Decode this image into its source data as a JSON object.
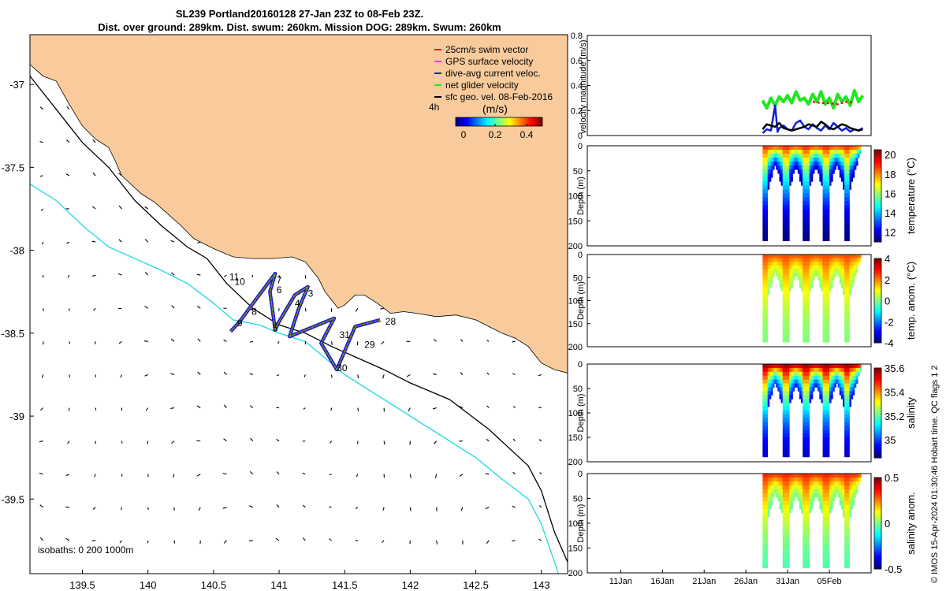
{
  "title_line1": "SL239 Portland20160128 27-Jan 23Z to 08-Feb 23Z.",
  "title_line2": "Dist. over ground: 289km. Dist. swum: 260km. Mission DOG: 289km. Swum: 260km",
  "copyright": "© IMOS 15-Apr-2024 01:30:46 Hobart time. QC flags 1  2",
  "colors": {
    "land": "#f9cb9c",
    "isobath200": "#000000",
    "isobath1000": "#2bd9e8",
    "track": "#e8181c",
    "dive_avg": "#1020d0",
    "net": "#22e622",
    "geo": "#000000"
  },
  "chart_data": [
    {
      "type": "scatter",
      "name": "map",
      "xlim": [
        139.1,
        143.2
      ],
      "ylim": [
        -39.95,
        -36.7
      ],
      "x_ticks": [
        "139.5",
        "140",
        "140.5",
        "141",
        "141.5",
        "142",
        "142.5",
        "143"
      ],
      "x_tick_values": [
        139.5,
        140,
        140.5,
        141,
        141.5,
        142,
        142.5,
        143
      ],
      "y_ticks": [
        "-37",
        "-37.5",
        "-38",
        "-38.5",
        "-39",
        "-39.5"
      ],
      "y_tick_values": [
        -37,
        -37.5,
        -38,
        -38.5,
        -39,
        -39.5
      ],
      "legend": {
        "position": "top-right",
        "items": [
          {
            "label": "25cm/s swim vector",
            "color": "#e8181c"
          },
          {
            "label": "GPS surface velocity",
            "color": "#e040e0"
          },
          {
            "label": "dive-avg current veloc.",
            "color": "#1020d0"
          },
          {
            "label": "net glider velocity",
            "color": "#22e622"
          },
          {
            "label": "sfc geo. vel. 08-Feb-2016",
            "color": "#000000"
          }
        ]
      },
      "colorbar": {
        "label_left": "4h",
        "label": "(m/s)",
        "ticks": [
          "0",
          "0.2",
          "0.4"
        ],
        "tick_values": [
          0,
          0.2,
          0.4
        ],
        "range": [
          -0.05,
          0.5
        ]
      },
      "isobath_text": "isobaths: 0   200  1000m",
      "day_labels": [
        {
          "text": "11",
          "lon": 140.62,
          "lat": -38.16
        },
        {
          "text": "10",
          "lon": 140.66,
          "lat": -38.19
        },
        {
          "text": "7",
          "lon": 140.98,
          "lat": -38.18
        },
        {
          "text": "6",
          "lon": 140.98,
          "lat": -38.24
        },
        {
          "text": "3",
          "lon": 141.22,
          "lat": -38.26
        },
        {
          "text": "4",
          "lon": 141.12,
          "lat": -38.32
        },
        {
          "text": "8",
          "lon": 140.79,
          "lat": -38.37
        },
        {
          "text": "9",
          "lon": 140.68,
          "lat": -38.44
        },
        {
          "text": "5",
          "lon": 140.95,
          "lat": -38.47
        },
        {
          "text": "28",
          "lon": 141.81,
          "lat": -38.43
        },
        {
          "text": "31",
          "lon": 141.46,
          "lat": -38.51
        },
        {
          "text": "29",
          "lon": 141.65,
          "lat": -38.57
        },
        {
          "text": "30",
          "lon": 141.44,
          "lat": -38.71
        }
      ],
      "track": [
        [
          141.77,
          -38.42
        ],
        [
          141.58,
          -38.46
        ],
        [
          141.44,
          -38.72
        ],
        [
          141.32,
          -38.56
        ],
        [
          141.42,
          -38.41
        ],
        [
          141.08,
          -38.52
        ],
        [
          141.15,
          -38.35
        ],
        [
          141.22,
          -38.22
        ],
        [
          141.12,
          -38.27
        ],
        [
          141.0,
          -38.43
        ],
        [
          140.97,
          -38.48
        ],
        [
          140.93,
          -38.25
        ],
        [
          140.97,
          -38.14
        ],
        [
          140.82,
          -38.3
        ],
        [
          140.7,
          -38.43
        ],
        [
          140.63,
          -38.49
        ]
      ],
      "coast": [
        [
          139.1,
          -36.5
        ],
        [
          139.1,
          -36.88
        ],
        [
          139.2,
          -36.95
        ],
        [
          139.3,
          -36.98
        ],
        [
          139.4,
          -37.12
        ],
        [
          139.5,
          -37.25
        ],
        [
          139.6,
          -37.33
        ],
        [
          139.7,
          -37.38
        ],
        [
          139.75,
          -37.46
        ],
        [
          139.8,
          -37.55
        ],
        [
          139.95,
          -37.66
        ],
        [
          140.05,
          -37.71
        ],
        [
          140.15,
          -37.78
        ],
        [
          140.25,
          -37.85
        ],
        [
          140.35,
          -37.93
        ],
        [
          140.5,
          -37.99
        ],
        [
          140.65,
          -38.04
        ],
        [
          140.8,
          -38.05
        ],
        [
          140.95,
          -38.05
        ],
        [
          141.1,
          -38.04
        ],
        [
          141.2,
          -38.07
        ],
        [
          141.3,
          -38.17
        ],
        [
          141.35,
          -38.25
        ],
        [
          141.4,
          -38.3
        ],
        [
          141.45,
          -38.35
        ],
        [
          141.5,
          -38.33
        ],
        [
          141.58,
          -38.27
        ],
        [
          141.65,
          -38.27
        ],
        [
          141.75,
          -38.32
        ],
        [
          141.85,
          -38.38
        ],
        [
          141.95,
          -38.37
        ],
        [
          142.05,
          -38.38
        ],
        [
          142.2,
          -38.4
        ],
        [
          142.35,
          -38.39
        ],
        [
          142.5,
          -38.42
        ],
        [
          142.6,
          -38.46
        ],
        [
          142.7,
          -38.5
        ],
        [
          142.8,
          -38.53
        ],
        [
          142.9,
          -38.58
        ],
        [
          143.0,
          -38.68
        ],
        [
          143.1,
          -38.72
        ],
        [
          143.2,
          -38.74
        ],
        [
          143.2,
          -36.5
        ]
      ],
      "isobath_200": [
        [
          139.1,
          -36.95
        ],
        [
          139.3,
          -37.15
        ],
        [
          139.5,
          -37.35
        ],
        [
          139.7,
          -37.5
        ],
        [
          139.9,
          -37.7
        ],
        [
          140.1,
          -37.85
        ],
        [
          140.3,
          -37.98
        ],
        [
          140.45,
          -38.05
        ],
        [
          140.6,
          -38.2
        ],
        [
          140.8,
          -38.35
        ],
        [
          141.0,
          -38.45
        ],
        [
          141.2,
          -38.5
        ],
        [
          141.4,
          -38.58
        ],
        [
          141.6,
          -38.65
        ],
        [
          141.8,
          -38.72
        ],
        [
          142.0,
          -38.8
        ],
        [
          142.3,
          -38.9
        ],
        [
          142.6,
          -39.08
        ],
        [
          142.9,
          -39.3
        ],
        [
          143.0,
          -39.45
        ],
        [
          143.1,
          -39.7
        ],
        [
          143.2,
          -39.88
        ]
      ],
      "isobath_1000": [
        [
          139.1,
          -37.6
        ],
        [
          139.3,
          -37.7
        ],
        [
          139.5,
          -37.85
        ],
        [
          139.7,
          -37.98
        ],
        [
          139.9,
          -38.05
        ],
        [
          140.1,
          -38.12
        ],
        [
          140.3,
          -38.2
        ],
        [
          140.5,
          -38.32
        ],
        [
          140.65,
          -38.42
        ],
        [
          140.85,
          -38.45
        ],
        [
          141.0,
          -38.5
        ],
        [
          141.2,
          -38.55
        ],
        [
          141.35,
          -38.65
        ],
        [
          141.5,
          -38.75
        ],
        [
          141.7,
          -38.85
        ],
        [
          141.9,
          -38.95
        ],
        [
          142.1,
          -39.05
        ],
        [
          142.3,
          -39.15
        ],
        [
          142.5,
          -39.25
        ],
        [
          142.7,
          -39.38
        ],
        [
          142.9,
          -39.5
        ],
        [
          143.0,
          -39.65
        ],
        [
          143.1,
          -39.88
        ],
        [
          143.15,
          -40
        ]
      ]
    },
    {
      "type": "line",
      "name": "velocity",
      "ylabel": "velocity magnitude (m/s)",
      "ylim": [
        0,
        0.8
      ],
      "yticks": [
        "0",
        "0.2",
        "0.4",
        "0.6",
        "0.8"
      ],
      "ytick_values": [
        0,
        0.2,
        0.4,
        0.6,
        0.8
      ],
      "xlim": [
        7,
        41
      ],
      "series": [
        {
          "name": "net glider velocity",
          "color": "#22e622",
          "x": [
            28.0,
            28.5,
            29.0,
            29.5,
            30.0,
            30.5,
            31.0,
            31.5,
            32.0,
            32.5,
            33.0,
            33.5,
            34.0,
            34.5,
            35.0,
            35.5,
            36.0,
            36.5,
            37.0,
            37.5,
            38.0,
            38.5,
            39.0,
            39.5,
            40.0
          ],
          "values": [
            0.28,
            0.22,
            0.3,
            0.24,
            0.31,
            0.27,
            0.32,
            0.26,
            0.35,
            0.28,
            0.3,
            0.25,
            0.33,
            0.27,
            0.35,
            0.25,
            0.3,
            0.22,
            0.33,
            0.27,
            0.31,
            0.24,
            0.36,
            0.27,
            0.32
          ]
        },
        {
          "name": "dive-avg current veloc.",
          "color": "#1020d0",
          "x": [
            28.0,
            28.5,
            29.0,
            29.5,
            29.8,
            30.0,
            30.5,
            31.0,
            31.5,
            32.0,
            32.5,
            33.0,
            33.5,
            34.0,
            34.5,
            35.0,
            35.5,
            36.0,
            36.5,
            37.0,
            37.5,
            38.0,
            38.5,
            39.0,
            39.5,
            40.0
          ],
          "values": [
            0.02,
            0.05,
            0.04,
            0.24,
            0.03,
            0.06,
            0.08,
            0.05,
            0.04,
            0.1,
            0.12,
            0.07,
            0.05,
            0.09,
            0.06,
            0.04,
            0.08,
            0.05,
            0.1,
            0.07,
            0.04,
            0.06,
            0.03,
            0.05,
            0.04,
            0.06
          ]
        },
        {
          "name": "sfc geo. vel.",
          "color": "#000000",
          "x": [
            28.0,
            28.5,
            29.0,
            29.5,
            30.0,
            30.5,
            31.0,
            31.5,
            32.0,
            32.5,
            33.0,
            33.5,
            34.0,
            34.5,
            35.0,
            35.5,
            36.0,
            36.5,
            37.0,
            37.5,
            38.0,
            38.5,
            39.0,
            39.5,
            40.0
          ],
          "values": [
            0.05,
            0.09,
            0.08,
            0.07,
            0.1,
            0.06,
            0.05,
            0.04,
            0.05,
            0.06,
            0.07,
            0.09,
            0.08,
            0.07,
            0.11,
            0.09,
            0.06,
            0.05,
            0.07,
            0.09,
            0.08,
            0.06,
            0.05,
            0.04,
            0.05
          ]
        },
        {
          "name": "swim vector",
          "color": "#e8181c",
          "x": [
            34.0,
            35.0,
            36.0,
            37.0,
            38.0,
            39.0
          ],
          "values": [
            0.27,
            0.26,
            0.26,
            0.25,
            0.27,
            0.26
          ]
        }
      ]
    },
    {
      "type": "heatmap",
      "name": "temperature",
      "ylabel": "Depth (m)",
      "cbar_label": "temperature (°C)",
      "ylim": [
        200,
        0
      ],
      "yticks": [
        "0",
        "50",
        "100",
        "150",
        "200"
      ],
      "ytick_values": [
        0,
        50,
        100,
        150,
        200
      ],
      "cbar_range": [
        11,
        20.5
      ],
      "cbar_ticks": [
        "12",
        "14",
        "16",
        "18",
        "20"
      ],
      "cbar_tick_values": [
        12,
        14,
        16,
        18,
        20
      ],
      "max_depth": 190,
      "surface_value": 19,
      "deep_value": 11
    },
    {
      "type": "heatmap",
      "name": "temp-anom",
      "ylabel": "Depth (m)",
      "cbar_label": "temp. anom. (°C)",
      "ylim": [
        200,
        0
      ],
      "yticks": [
        "0",
        "50",
        "100",
        "150",
        "200"
      ],
      "ytick_values": [
        0,
        50,
        100,
        150,
        200
      ],
      "cbar_range": [
        -4,
        4
      ],
      "cbar_ticks": [
        "-4",
        "-2",
        "0",
        "2",
        "4"
      ],
      "cbar_tick_values": [
        -4,
        -2,
        0,
        2,
        4
      ],
      "max_depth": 190,
      "surface_value": 2.5,
      "deep_value": 0
    },
    {
      "type": "heatmap",
      "name": "salinity",
      "ylabel": "Depth (m)",
      "cbar_label": "salinity",
      "ylim": [
        200,
        0
      ],
      "yticks": [
        "0",
        "50",
        "100",
        "150",
        "200"
      ],
      "ytick_values": [
        0,
        50,
        100,
        150,
        200
      ],
      "cbar_range": [
        34.85,
        35.6
      ],
      "cbar_ticks": [
        "35",
        "35.2",
        "35.4",
        "35.6"
      ],
      "cbar_tick_values": [
        35,
        35.2,
        35.4,
        35.6
      ],
      "max_depth": 190,
      "surface_value": 35.6,
      "deep_value": 34.9
    },
    {
      "type": "heatmap",
      "name": "salinity-anom",
      "ylabel": "Depth (m)",
      "cbar_label": "salinity anom.",
      "ylim": [
        200,
        0
      ],
      "yticks": [
        "0",
        "50",
        "100",
        "150",
        "200"
      ],
      "ytick_values": [
        0,
        50,
        100,
        150,
        200
      ],
      "cbar_range": [
        -0.5,
        0.5
      ],
      "cbar_ticks": [
        "-0.5",
        "0",
        "0.5"
      ],
      "cbar_tick_values": [
        -0.5,
        0,
        0.5
      ],
      "max_depth": 190,
      "surface_value": 0.35,
      "deep_value": -0.05
    },
    {
      "type": "axis",
      "name": "time-axis",
      "x_ticks": [
        "11Jan",
        "16Jan",
        "21Jan",
        "26Jan",
        "31Jan",
        "05Feb"
      ],
      "x_tick_values": [
        11,
        16,
        21,
        26,
        31,
        36
      ],
      "profiles_x": [
        28.3,
        30.8,
        33.2,
        35.6,
        38.1
      ],
      "data_start": 28,
      "data_end": 40
    }
  ]
}
